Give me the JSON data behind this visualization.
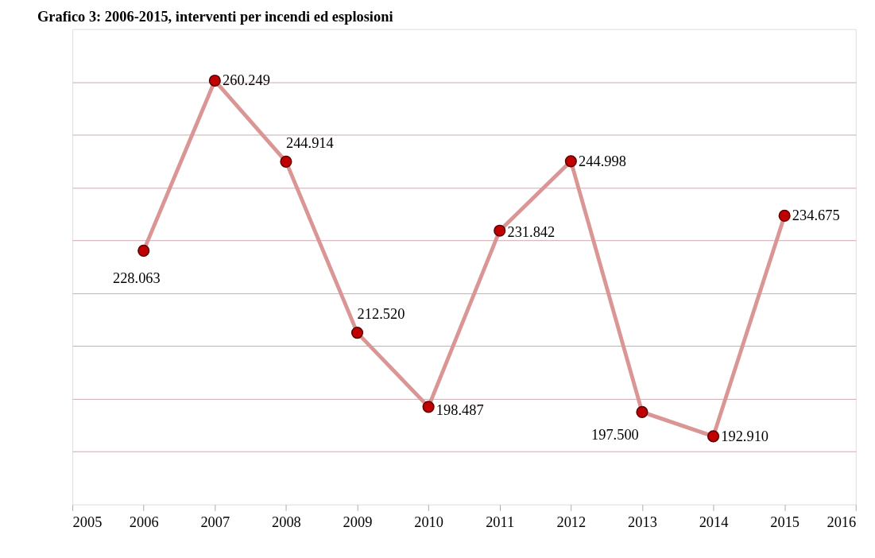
{
  "chart_data": {
    "type": "line",
    "title": "Grafico 3:  2006-2015,  interventi per incendi ed esplosioni",
    "x": [
      2006,
      2007,
      2008,
      2009,
      2010,
      2011,
      2012,
      2013,
      2014,
      2015
    ],
    "series": [
      {
        "color": "#d99694",
        "values": [
          228063,
          260249,
          244914,
          212520,
          198487,
          231842,
          244998,
          197500,
          192910,
          234675
        ],
        "value_labels": [
          "228.063",
          "260.249",
          "244.914",
          "212.520",
          "198.487",
          "231.842",
          "244.998",
          "197.500",
          "192.910",
          "234.675"
        ]
      }
    ],
    "xlim": [
      2005,
      2016
    ],
    "xticks": [
      2005,
      2006,
      2007,
      2008,
      2009,
      2010,
      2011,
      2012,
      2013,
      2014,
      2015,
      2016
    ],
    "ylim": [
      180000,
      270000
    ],
    "yticks": [
      {
        "value": 190000,
        "label": null
      },
      {
        "value": 200000,
        "label": null
      },
      {
        "value": 210000,
        "label": null
      },
      {
        "value": 220000,
        "label": null
      },
      {
        "value": 230000,
        "label": null
      },
      {
        "value": 240000,
        "label": null
      },
      {
        "value": 250000,
        "label": null
      },
      {
        "value": 260000,
        "label": null
      }
    ],
    "grid": "y",
    "tick_labels": "x",
    "marker": "circle",
    "line_style": "solid"
  }
}
